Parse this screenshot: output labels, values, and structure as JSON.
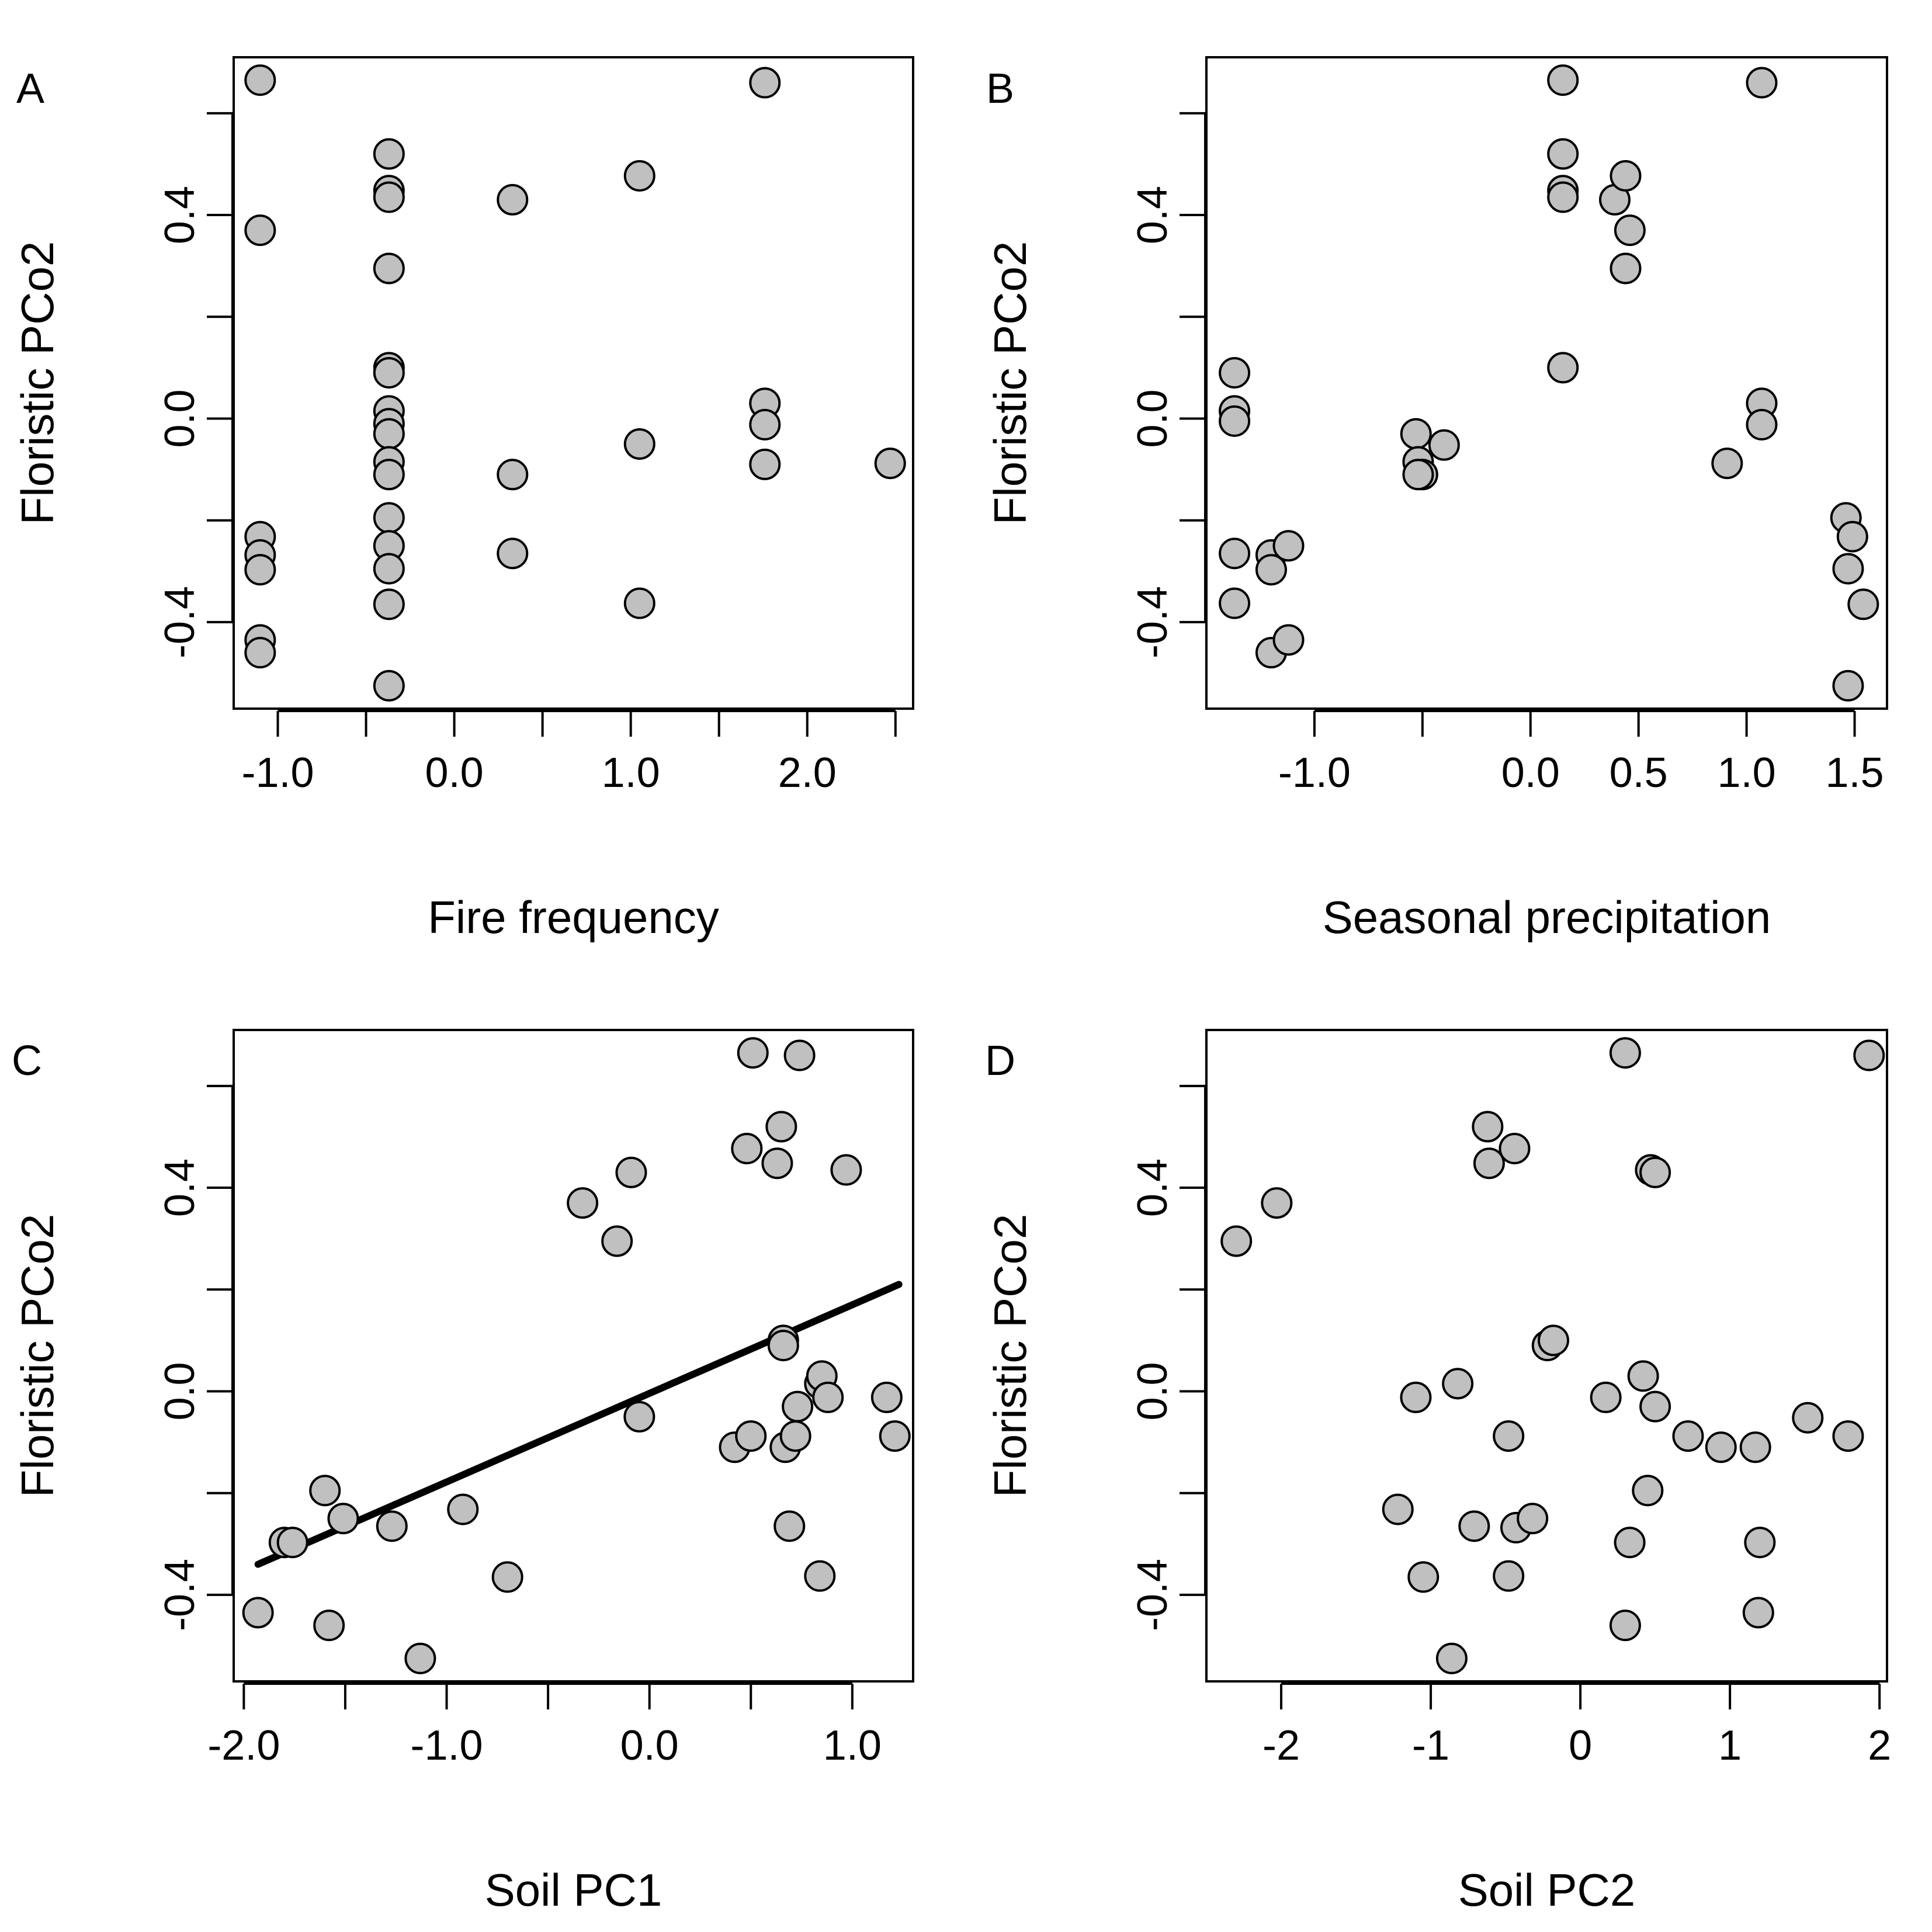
{
  "figure": {
    "point_fill": "#c0c0c0",
    "point_stroke": "#000000",
    "line_color": "#000000"
  },
  "chart_data": [
    {
      "type": "scatter",
      "panel": "A",
      "xlabel": "Fire frequency",
      "ylabel": "Floristic PCo2",
      "xlim": [
        -1.25,
        2.6
      ],
      "ylim": [
        -0.57,
        0.71
      ],
      "xticks": [
        -1.0,
        -0.5,
        0.0,
        0.5,
        1.0,
        1.5,
        2.0,
        2.5
      ],
      "xtick_labels": [
        "-1.0",
        "",
        "0.0",
        "",
        "1.0",
        "",
        "2.0",
        ""
      ],
      "yticks": [
        -0.4,
        -0.2,
        0.0,
        0.2,
        0.4,
        0.6
      ],
      "ytick_labels": [
        "-0.4",
        "",
        "0.0",
        "",
        "0.4",
        ""
      ],
      "grid": false,
      "legend": "none",
      "points": [
        {
          "x": -1.1,
          "y": 0.665
        },
        {
          "x": -1.1,
          "y": 0.37
        },
        {
          "x": -1.1,
          "y": -0.232
        },
        {
          "x": -1.1,
          "y": -0.268
        },
        {
          "x": -1.1,
          "y": -0.297
        },
        {
          "x": -1.1,
          "y": -0.435
        },
        {
          "x": -1.1,
          "y": -0.46
        },
        {
          "x": -0.37,
          "y": 0.52
        },
        {
          "x": -0.37,
          "y": 0.448
        },
        {
          "x": -0.37,
          "y": 0.435
        },
        {
          "x": -0.37,
          "y": 0.295
        },
        {
          "x": -0.37,
          "y": 0.1
        },
        {
          "x": -0.37,
          "y": 0.09
        },
        {
          "x": -0.37,
          "y": 0.015
        },
        {
          "x": -0.37,
          "y": -0.01
        },
        {
          "x": -0.37,
          "y": -0.03
        },
        {
          "x": -0.37,
          "y": -0.085
        },
        {
          "x": -0.37,
          "y": -0.11
        },
        {
          "x": -0.37,
          "y": -0.195
        },
        {
          "x": -0.37,
          "y": -0.25
        },
        {
          "x": -0.37,
          "y": -0.295
        },
        {
          "x": -0.37,
          "y": -0.365
        },
        {
          "x": -0.37,
          "y": -0.525
        },
        {
          "x": 0.33,
          "y": 0.43
        },
        {
          "x": 0.33,
          "y": -0.11
        },
        {
          "x": 0.33,
          "y": -0.265
        },
        {
          "x": 1.05,
          "y": 0.477
        },
        {
          "x": 1.05,
          "y": -0.05
        },
        {
          "x": 1.05,
          "y": -0.363
        },
        {
          "x": 1.76,
          "y": 0.66
        },
        {
          "x": 1.76,
          "y": 0.03
        },
        {
          "x": 1.76,
          "y": -0.012
        },
        {
          "x": 1.76,
          "y": -0.09
        },
        {
          "x": 2.47,
          "y": -0.088
        }
      ]
    },
    {
      "type": "scatter",
      "panel": "B",
      "xlabel": "Seasonal precipitation",
      "ylabel": "Floristic PCo2",
      "xlim": [
        -1.5,
        1.65
      ],
      "ylim": [
        -0.57,
        0.71
      ],
      "xticks": [
        -1.0,
        -0.5,
        0.0,
        0.5,
        1.0,
        1.5
      ],
      "xtick_labels": [
        "-1.0",
        "",
        "0.0",
        "0.5",
        "1.0",
        "1.5"
      ],
      "yticks": [
        -0.4,
        -0.2,
        0.0,
        0.2,
        0.4,
        0.6
      ],
      "ytick_labels": [
        "-0.4",
        "",
        "0.0",
        "",
        "0.4",
        ""
      ],
      "grid": false,
      "legend": "none",
      "points": [
        {
          "x": -1.37,
          "y": 0.09
        },
        {
          "x": -1.37,
          "y": 0.015
        },
        {
          "x": -1.37,
          "y": -0.005
        },
        {
          "x": -1.37,
          "y": -0.265
        },
        {
          "x": -1.37,
          "y": -0.363
        },
        {
          "x": -1.2,
          "y": -0.268
        },
        {
          "x": -1.2,
          "y": -0.297
        },
        {
          "x": -1.2,
          "y": -0.46
        },
        {
          "x": -1.12,
          "y": -0.25
        },
        {
          "x": -1.12,
          "y": -0.435
        },
        {
          "x": -0.53,
          "y": -0.03
        },
        {
          "x": -0.52,
          "y": -0.085
        },
        {
          "x": -0.5,
          "y": -0.11
        },
        {
          "x": -0.52,
          "y": -0.11
        },
        {
          "x": -0.4,
          "y": -0.052
        },
        {
          "x": 0.15,
          "y": 0.665
        },
        {
          "x": 0.15,
          "y": 0.52
        },
        {
          "x": 0.15,
          "y": 0.448
        },
        {
          "x": 0.15,
          "y": 0.435
        },
        {
          "x": 0.15,
          "y": 0.1
        },
        {
          "x": 0.39,
          "y": 0.43
        },
        {
          "x": 0.44,
          "y": 0.477
        },
        {
          "x": 0.46,
          "y": 0.37
        },
        {
          "x": 0.44,
          "y": 0.295
        },
        {
          "x": 0.91,
          "y": -0.088
        },
        {
          "x": 1.07,
          "y": 0.66
        },
        {
          "x": 1.07,
          "y": 0.03
        },
        {
          "x": 1.07,
          "y": -0.012
        },
        {
          "x": 1.46,
          "y": -0.195
        },
        {
          "x": 1.49,
          "y": -0.232
        },
        {
          "x": 1.47,
          "y": -0.295
        },
        {
          "x": 1.54,
          "y": -0.365
        },
        {
          "x": 1.47,
          "y": -0.525
        }
      ]
    },
    {
      "type": "scatter",
      "panel": "C",
      "xlabel": "Soil PC1",
      "ylabel": "Floristic PCo2",
      "xlim": [
        -2.05,
        1.3
      ],
      "ylim": [
        -0.57,
        0.71
      ],
      "xticks": [
        -2.0,
        -1.5,
        -1.0,
        -0.5,
        0.0,
        0.5,
        1.0
      ],
      "xtick_labels": [
        "-2.0",
        "",
        "-1.0",
        "",
        "0.0",
        "",
        "1.0"
      ],
      "yticks": [
        -0.4,
        -0.2,
        0.0,
        0.2,
        0.4,
        0.6
      ],
      "ytick_labels": [
        "-0.4",
        "",
        "0.0",
        "",
        "0.4",
        ""
      ],
      "grid": false,
      "legend": "none",
      "fit_line": {
        "x": [
          -1.93,
          1.23
        ],
        "y": [
          -0.34,
          0.21
        ]
      },
      "points": [
        {
          "x": -1.93,
          "y": -0.435
        },
        {
          "x": -1.8,
          "y": -0.297
        },
        {
          "x": -1.76,
          "y": -0.297
        },
        {
          "x": -1.6,
          "y": -0.195
        },
        {
          "x": -1.58,
          "y": -0.46
        },
        {
          "x": -1.51,
          "y": -0.25
        },
        {
          "x": -1.27,
          "y": -0.265
        },
        {
          "x": -1.13,
          "y": -0.525
        },
        {
          "x": -0.92,
          "y": -0.232
        },
        {
          "x": -0.7,
          "y": -0.365
        },
        {
          "x": -0.33,
          "y": 0.37
        },
        {
          "x": -0.16,
          "y": 0.295
        },
        {
          "x": -0.09,
          "y": 0.43
        },
        {
          "x": -0.05,
          "y": -0.05
        },
        {
          "x": 0.42,
          "y": -0.11
        },
        {
          "x": 0.48,
          "y": 0.477
        },
        {
          "x": 0.5,
          "y": -0.088
        },
        {
          "x": 0.51,
          "y": 0.665
        },
        {
          "x": 0.63,
          "y": 0.448
        },
        {
          "x": 0.65,
          "y": 0.52
        },
        {
          "x": 0.66,
          "y": 0.1
        },
        {
          "x": 0.66,
          "y": 0.09
        },
        {
          "x": 0.67,
          "y": -0.11
        },
        {
          "x": 0.69,
          "y": -0.265
        },
        {
          "x": 0.72,
          "y": -0.088
        },
        {
          "x": 0.73,
          "y": -0.03
        },
        {
          "x": 0.74,
          "y": 0.66
        },
        {
          "x": 0.84,
          "y": -0.363
        },
        {
          "x": 0.84,
          "y": 0.015
        },
        {
          "x": 0.85,
          "y": 0.03
        },
        {
          "x": 0.88,
          "y": -0.012
        },
        {
          "x": 0.97,
          "y": 0.435
        },
        {
          "x": 1.17,
          "y": -0.012
        },
        {
          "x": 1.21,
          "y": -0.088
        }
      ]
    },
    {
      "type": "scatter",
      "panel": "D",
      "xlabel": "Soil PC2",
      "ylabel": "Floristic PCo2",
      "xlim": [
        -2.5,
        2.05
      ],
      "ylim": [
        -0.57,
        0.71
      ],
      "xticks": [
        -2,
        -1,
        0,
        1,
        2
      ],
      "xtick_labels": [
        "-2",
        "-1",
        "0",
        "1",
        "2"
      ],
      "yticks": [
        -0.4,
        -0.2,
        0.0,
        0.2,
        0.4,
        0.6
      ],
      "ytick_labels": [
        "-0.4",
        "",
        "0.0",
        "",
        "0.4",
        ""
      ],
      "grid": false,
      "legend": "none",
      "points": [
        {
          "x": -2.3,
          "y": 0.295
        },
        {
          "x": -2.03,
          "y": 0.37
        },
        {
          "x": -1.22,
          "y": -0.232
        },
        {
          "x": -1.1,
          "y": -0.012
        },
        {
          "x": -1.05,
          "y": -0.365
        },
        {
          "x": -0.82,
          "y": 0.015
        },
        {
          "x": -0.86,
          "y": -0.525
        },
        {
          "x": -0.71,
          "y": -0.265
        },
        {
          "x": -0.62,
          "y": 0.52
        },
        {
          "x": -0.61,
          "y": 0.448
        },
        {
          "x": -0.48,
          "y": -0.088
        },
        {
          "x": -0.48,
          "y": -0.363
        },
        {
          "x": -0.44,
          "y": 0.477
        },
        {
          "x": -0.43,
          "y": -0.268
        },
        {
          "x": -0.32,
          "y": -0.25
        },
        {
          "x": -0.22,
          "y": 0.09
        },
        {
          "x": -0.18,
          "y": 0.1
        },
        {
          "x": 0.17,
          "y": -0.012
        },
        {
          "x": 0.3,
          "y": 0.665
        },
        {
          "x": 0.3,
          "y": -0.46
        },
        {
          "x": 0.33,
          "y": -0.297
        },
        {
          "x": 0.42,
          "y": 0.03
        },
        {
          "x": 0.45,
          "y": -0.195
        },
        {
          "x": 0.47,
          "y": 0.435
        },
        {
          "x": 0.5,
          "y": 0.43
        },
        {
          "x": 0.5,
          "y": -0.03
        },
        {
          "x": 0.72,
          "y": -0.088
        },
        {
          "x": 0.94,
          "y": -0.11
        },
        {
          "x": 1.17,
          "y": -0.11
        },
        {
          "x": 1.2,
          "y": -0.297
        },
        {
          "x": 1.19,
          "y": -0.435
        },
        {
          "x": 1.52,
          "y": -0.052
        },
        {
          "x": 1.79,
          "y": -0.088
        },
        {
          "x": 1.93,
          "y": 0.66
        }
      ]
    }
  ]
}
